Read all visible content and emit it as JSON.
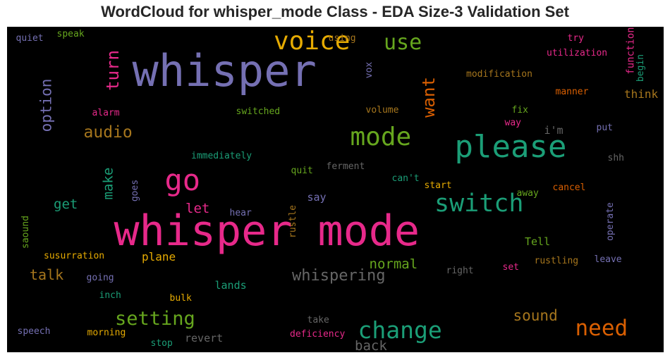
{
  "title": "WordCloud for whisper_mode Class - EDA Size-3 Validation Set",
  "background": "#000000",
  "words": [
    {
      "text": "whisper mode",
      "color": "#e7298a",
      "vertical": false
    },
    {
      "text": "whisper",
      "color": "#7570b3",
      "vertical": false
    },
    {
      "text": "please",
      "color": "#1b9e77",
      "vertical": false
    },
    {
      "text": "voice",
      "color": "#e6ab02",
      "vertical": false
    },
    {
      "text": "go",
      "color": "#e7298a",
      "vertical": false
    },
    {
      "text": "mode",
      "color": "#66a61e",
      "vertical": false
    },
    {
      "text": "switch",
      "color": "#1b9e77",
      "vertical": false
    },
    {
      "text": "change",
      "color": "#1b9e77",
      "vertical": false
    },
    {
      "text": "need",
      "color": "#d95f02",
      "vertical": false
    },
    {
      "text": "use",
      "color": "#66a61e",
      "vertical": false
    },
    {
      "text": "turn",
      "color": "#e7298a",
      "vertical": true
    },
    {
      "text": "want",
      "color": "#d95f02",
      "vertical": true
    },
    {
      "text": "setting",
      "color": "#66a61e",
      "vertical": false
    },
    {
      "text": "audio",
      "color": "#a6761d",
      "vertical": false
    },
    {
      "text": "option",
      "color": "#7570b3",
      "vertical": true
    },
    {
      "text": "whispering",
      "color": "#666666",
      "vertical": false
    },
    {
      "text": "sound",
      "color": "#a6761d",
      "vertical": false
    },
    {
      "text": "back",
      "color": "#666666",
      "vertical": false
    },
    {
      "text": "normal",
      "color": "#66a61e",
      "vertical": false
    },
    {
      "text": "talk",
      "color": "#a6761d",
      "vertical": false
    },
    {
      "text": "get",
      "color": "#1b9e77",
      "vertical": false
    },
    {
      "text": "make",
      "color": "#1b9e77",
      "vertical": true
    },
    {
      "text": "let",
      "color": "#e7298a",
      "vertical": false
    },
    {
      "text": "think",
      "color": "#a6761d",
      "vertical": false
    },
    {
      "text": "plane",
      "color": "#e6ab02",
      "vertical": false
    },
    {
      "text": "Tell",
      "color": "#66a61e",
      "vertical": false
    },
    {
      "text": "lands",
      "color": "#1b9e77",
      "vertical": false
    },
    {
      "text": "revert",
      "color": "#666666",
      "vertical": false
    },
    {
      "text": "say",
      "color": "#7570b3",
      "vertical": false
    },
    {
      "text": "i'm",
      "color": "#666666",
      "vertical": false
    },
    {
      "text": "quiet",
      "color": "#7570b3",
      "vertical": false
    },
    {
      "text": "speak",
      "color": "#66a61e",
      "vertical": false
    },
    {
      "text": "using",
      "color": "#a6761d",
      "vertical": false
    },
    {
      "text": "vox",
      "color": "#7570b3",
      "vertical": true
    },
    {
      "text": "try",
      "color": "#e7298a",
      "vertical": false
    },
    {
      "text": "utilization",
      "color": "#e7298a",
      "vertical": false
    },
    {
      "text": "function",
      "color": "#e7298a",
      "vertical": true
    },
    {
      "text": "begin",
      "color": "#1b9e77",
      "vertical": true
    },
    {
      "text": "modification",
      "color": "#a6761d",
      "vertical": false
    },
    {
      "text": "manner",
      "color": "#d95f02",
      "vertical": false
    },
    {
      "text": "alarm",
      "color": "#e7298a",
      "vertical": false
    },
    {
      "text": "switched",
      "color": "#66a61e",
      "vertical": false
    },
    {
      "text": "volume",
      "color": "#a6761d",
      "vertical": false
    },
    {
      "text": "fix",
      "color": "#66a61e",
      "vertical": false
    },
    {
      "text": "way",
      "color": "#e7298a",
      "vertical": false
    },
    {
      "text": "put",
      "color": "#7570b3",
      "vertical": false
    },
    {
      "text": "immediately",
      "color": "#1b9e77",
      "vertical": false
    },
    {
      "text": "ferment",
      "color": "#666666",
      "vertical": false
    },
    {
      "text": "shh",
      "color": "#666666",
      "vertical": false
    },
    {
      "text": "quit",
      "color": "#66a61e",
      "vertical": false
    },
    {
      "text": "can't",
      "color": "#1b9e77",
      "vertical": false
    },
    {
      "text": "goes",
      "color": "#7570b3",
      "vertical": true
    },
    {
      "text": "start",
      "color": "#e6ab02",
      "vertical": false
    },
    {
      "text": "cancel",
      "color": "#d95f02",
      "vertical": false
    },
    {
      "text": "away",
      "color": "#66a61e",
      "vertical": false
    },
    {
      "text": "hear",
      "color": "#7570b3",
      "vertical": false
    },
    {
      "text": "rustle",
      "color": "#a6761d",
      "vertical": true
    },
    {
      "text": "operate",
      "color": "#7570b3",
      "vertical": true
    },
    {
      "text": "saound",
      "color": "#66a61e",
      "vertical": true
    },
    {
      "text": "susurration",
      "color": "#e6ab02",
      "vertical": false
    },
    {
      "text": "rustling",
      "color": "#a6761d",
      "vertical": false
    },
    {
      "text": "leave",
      "color": "#7570b3",
      "vertical": false
    },
    {
      "text": "going",
      "color": "#7570b3",
      "vertical": false
    },
    {
      "text": "right",
      "color": "#666666",
      "vertical": false
    },
    {
      "text": "set",
      "color": "#e7298a",
      "vertical": false
    },
    {
      "text": "inch",
      "color": "#1b9e77",
      "vertical": false
    },
    {
      "text": "bulk",
      "color": "#e6ab02",
      "vertical": false
    },
    {
      "text": "take",
      "color": "#666666",
      "vertical": false
    },
    {
      "text": "speech",
      "color": "#7570b3",
      "vertical": false
    },
    {
      "text": "morning",
      "color": "#e6ab02",
      "vertical": false
    },
    {
      "text": "deficiency",
      "color": "#e7298a",
      "vertical": false
    },
    {
      "text": "stop",
      "color": "#1b9e77",
      "vertical": false
    }
  ]
}
